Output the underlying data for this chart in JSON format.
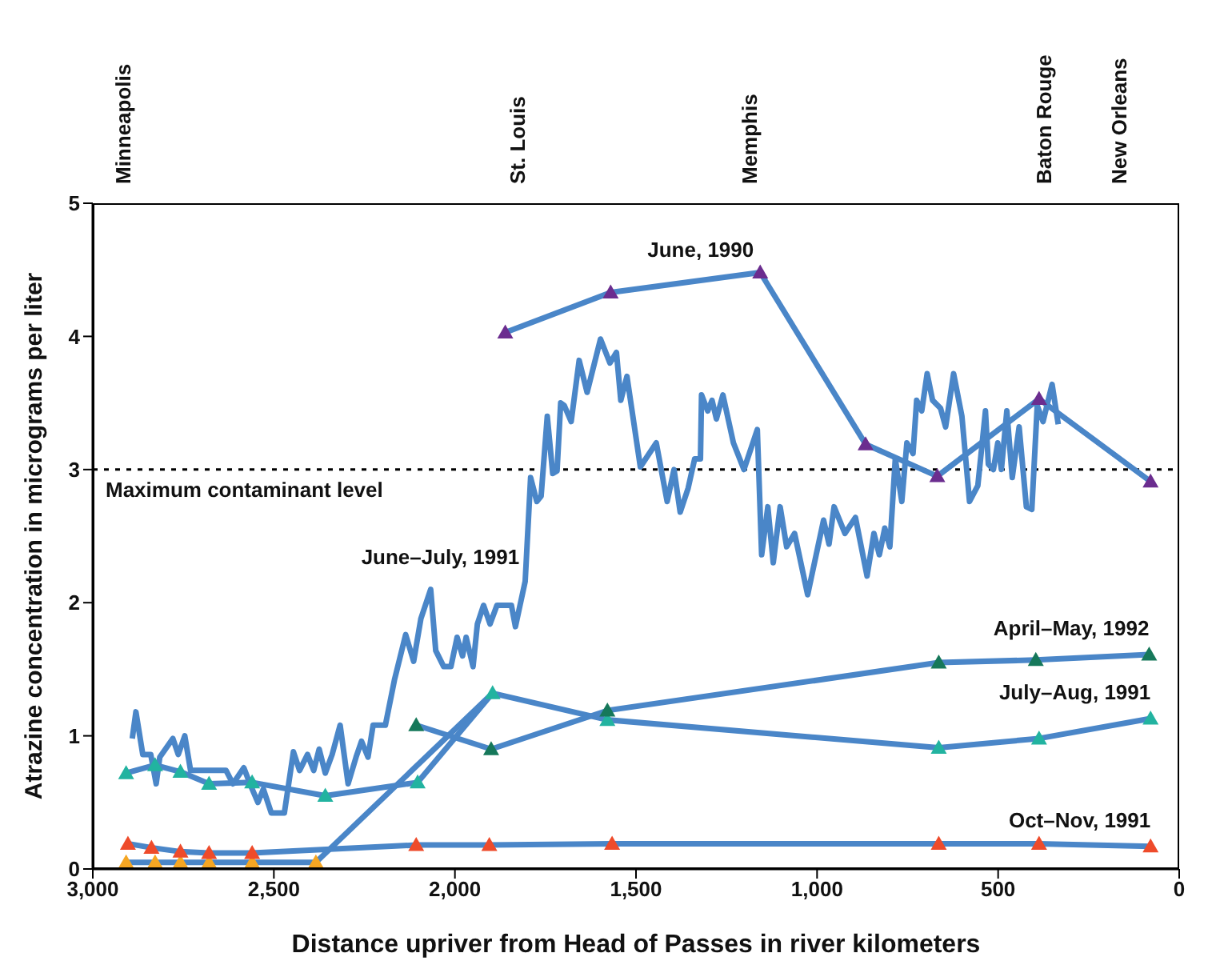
{
  "chart_data": {
    "type": "line",
    "xlabel": "Distance upriver from Head of Passes in river kilometers",
    "ylabel": "Atrazine concentration in micrograms per liter",
    "xlim": [
      3000,
      0
    ],
    "xticks": [
      {
        "value": 3000,
        "label": "3,000"
      },
      {
        "value": 2500,
        "label": "2,500"
      },
      {
        "value": 2000,
        "label": "2,000"
      },
      {
        "value": 1500,
        "label": "1,500"
      },
      {
        "value": 1000,
        "label": "1,000"
      },
      500,
      0
    ],
    "ylim": [
      0,
      5
    ],
    "yticks": [
      0,
      1,
      2,
      3,
      4,
      5
    ],
    "annotations": [
      "Minneapolis",
      "St. Louis",
      "Memphis",
      "Baton Rouge",
      "New Orleans"
    ],
    "ref_lines": [
      {
        "axis": "y",
        "value": 3,
        "label": "Maximum contaminant level",
        "color": "#000000",
        "line_style": "dotted"
      }
    ],
    "grid": false,
    "legend": false,
    "line_style": "solid",
    "series": [
      {
        "name": "June–July, 1991",
        "color": "#4a86c8",
        "marker": "none",
        "x": [
          2891,
          2881,
          2862,
          2840,
          2825,
          2815,
          2779,
          2764,
          2746,
          2730,
          2632,
          2613,
          2583,
          2566,
          2544,
          2529,
          2507,
          2471,
          2446,
          2429,
          2407,
          2390,
          2375,
          2358,
          2339,
          2317,
          2295,
          2273,
          2258,
          2240,
          2226,
          2192,
          2167,
          2136,
          2114,
          2094,
          2067,
          2053,
          2031,
          2011,
          1994,
          1979,
          1969,
          1950,
          1938,
          1921,
          1903,
          1884,
          1844,
          1833,
          1806,
          1791,
          1774,
          1762,
          1745,
          1730,
          1718,
          1708,
          1698,
          1679,
          1657,
          1635,
          1598,
          1572,
          1554,
          1542,
          1525,
          1488,
          1444,
          1414,
          1395,
          1378,
          1356,
          1338,
          1322,
          1319,
          1302,
          1290,
          1278,
          1260,
          1231,
          1202,
          1165,
          1153,
          1136,
          1121,
          1102,
          1084,
          1062,
          1026,
          982,
          967,
          953,
          923,
          894,
          862,
          843,
          828,
          813,
          799,
          784,
          766,
          752,
          735,
          725,
          711,
          696,
          681,
          659,
          645,
          623,
          600,
          579,
          556,
          535,
          527,
          513,
          501,
          491,
          476,
          461,
          442,
          422,
          407,
          392,
          376,
          351,
          334
        ],
        "values": [
          0.98,
          1.18,
          0.86,
          0.86,
          0.64,
          0.84,
          0.98,
          0.86,
          1.0,
          0.74,
          0.74,
          0.64,
          0.76,
          0.64,
          0.5,
          0.6,
          0.42,
          0.42,
          0.88,
          0.74,
          0.86,
          0.74,
          0.9,
          0.72,
          0.86,
          1.08,
          0.64,
          0.84,
          0.96,
          0.84,
          1.08,
          1.08,
          1.42,
          1.76,
          1.56,
          1.88,
          2.1,
          1.64,
          1.52,
          1.52,
          1.74,
          1.6,
          1.74,
          1.52,
          1.84,
          1.98,
          1.84,
          1.98,
          1.98,
          1.82,
          2.16,
          2.94,
          2.76,
          2.8,
          3.4,
          2.97,
          2.99,
          3.5,
          3.48,
          3.36,
          3.82,
          3.58,
          3.98,
          3.8,
          3.88,
          3.52,
          3.7,
          3.02,
          3.2,
          2.76,
          3.0,
          2.68,
          2.86,
          3.08,
          3.08,
          3.56,
          3.44,
          3.52,
          3.38,
          3.56,
          3.2,
          3.0,
          3.3,
          2.36,
          2.72,
          2.3,
          2.72,
          2.42,
          2.52,
          2.06,
          2.62,
          2.44,
          2.72,
          2.52,
          2.64,
          2.2,
          2.52,
          2.36,
          2.56,
          2.42,
          3.08,
          2.76,
          3.2,
          3.12,
          3.52,
          3.44,
          3.72,
          3.52,
          3.46,
          3.32,
          3.72,
          3.4,
          2.76,
          2.88,
          3.44,
          3.04,
          3.0,
          3.2,
          3.0,
          3.44,
          2.94,
          3.32,
          2.72,
          2.7,
          3.48,
          3.36,
          3.64,
          3.34
        ]
      },
      {
        "color": "#4a86c8",
        "marker": "triangle",
        "x": [
          2908,
          2828,
          2758,
          2679,
          2560,
          2384,
          1896
        ],
        "values": [
          0.05,
          0.05,
          0.05,
          0.05,
          0.05,
          0.05,
          1.32
        ],
        "colors": [
          "#f5a623",
          "#f5a623",
          "#f5a623",
          "#f5a623",
          "#f5a623",
          "#f5a623",
          null
        ]
      },
      {
        "name": "Oct–Nov, 1991",
        "color": "#4a86c8",
        "marker": "triangle",
        "x": [
          2903,
          2838,
          2758,
          2679,
          2560,
          2107,
          1905,
          1566,
          664,
          387,
          79
        ],
        "values": [
          0.19,
          0.16,
          0.13,
          0.12,
          0.12,
          0.18,
          0.18,
          0.19,
          0.19,
          0.19,
          0.17
        ],
        "colors": [
          "#ee4b2b",
          "#ee4b2b",
          "#ee4b2b",
          "#ee4b2b",
          "#ee4b2b",
          "#ee4b2b",
          "#ee4b2b",
          "#ee4b2b",
          "#ee4b2b",
          "#ee4b2b",
          "#ee4b2b"
        ]
      },
      {
        "name": "July–Aug, 1991",
        "color": "#4a86c8",
        "marker": "triangle",
        "x": [
          2908,
          2828,
          2758,
          2679,
          2560,
          2358,
          2103,
          1896,
          1579,
          664,
          387,
          79
        ],
        "values": [
          0.72,
          0.78,
          0.73,
          0.64,
          0.65,
          0.55,
          0.65,
          1.32,
          1.12,
          0.91,
          0.98,
          1.13
        ],
        "colors": [
          "#22b3a0",
          "#22b3a0",
          "#22b3a0",
          "#22b3a0",
          "#22b3a0",
          "#22b3a0",
          "#22b3a0",
          "#22b3a0",
          "#22b3a0",
          "#22b3a0",
          "#22b3a0",
          "#22b3a0"
        ]
      },
      {
        "name": "April–May, 1992",
        "color": "#4a86c8",
        "marker": "triangle",
        "x": [
          2107,
          1900,
          1579,
          664,
          396,
          83
        ],
        "values": [
          1.08,
          0.9,
          1.19,
          1.55,
          1.57,
          1.61
        ],
        "colors": [
          "#16785a",
          "#16785a",
          "#16785a",
          "#16785a",
          "#16785a",
          "#16785a"
        ]
      },
      {
        "name": "June, 1990",
        "color": "#4a86c8",
        "marker": "triangle",
        "x": [
          1861,
          1570,
          1157,
          866,
          668,
          387,
          79
        ],
        "values": [
          4.03,
          4.33,
          4.48,
          3.19,
          2.95,
          3.53,
          2.91
        ],
        "colors": [
          "#6b2d8f",
          "#6b2d8f",
          "#6b2d8f",
          "#6b2d8f",
          "#6b2d8f",
          "#6b2d8f",
          "#6b2d8f"
        ]
      }
    ]
  }
}
